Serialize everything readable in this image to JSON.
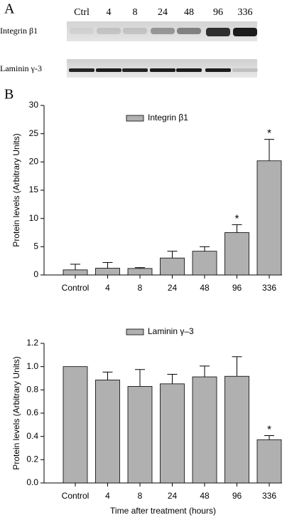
{
  "panel_a": {
    "label": "A",
    "columns": [
      "Ctrl",
      "4",
      "8",
      "24",
      "48",
      "96",
      "336"
    ],
    "rows": [
      "Integrin β1",
      "Laminin γ-3"
    ]
  },
  "panel_b_label": "B",
  "chart_data": [
    {
      "type": "bar",
      "y_label": "Protein levels (Arbitrary Units)",
      "legend": "Integrin β1",
      "categories": [
        "Control",
        "4",
        "8",
        "24",
        "48",
        "96",
        "336"
      ],
      "values": [
        0.9,
        1.2,
        1.15,
        3.0,
        4.2,
        7.5,
        20.2
      ],
      "errors": [
        1.0,
        1.0,
        0.15,
        1.2,
        0.8,
        1.4,
        3.8
      ],
      "value_annotations": [
        null,
        null,
        null,
        null,
        null,
        "*",
        "*"
      ],
      "color": "#b0b0b0",
      "ylim": [
        0,
        30
      ],
      "yticks": [
        0,
        5,
        10,
        15,
        20,
        25,
        30
      ]
    },
    {
      "type": "bar",
      "y_label": "Protein levels (Arbitrary Units)",
      "x_label": "Time after treatment (hours)",
      "legend": "Laminin γ–3",
      "categories": [
        "Control",
        "4",
        "8",
        "24",
        "48",
        "96",
        "336"
      ],
      "values": [
        1.0,
        0.885,
        0.83,
        0.852,
        0.912,
        0.917,
        0.372
      ],
      "errors": [
        null,
        0.068,
        0.145,
        0.082,
        0.093,
        0.168,
        0.035
      ],
      "value_annotations": [
        null,
        null,
        null,
        null,
        null,
        null,
        "*"
      ],
      "color": "#b0b0b0",
      "ylim": [
        0,
        1.2
      ],
      "yticks": [
        {
          "value": 0,
          "label": "0.0"
        },
        0.2,
        0.4,
        0.6,
        0.8,
        {
          "value": 1,
          "label": "1.0"
        },
        1.2
      ]
    }
  ]
}
